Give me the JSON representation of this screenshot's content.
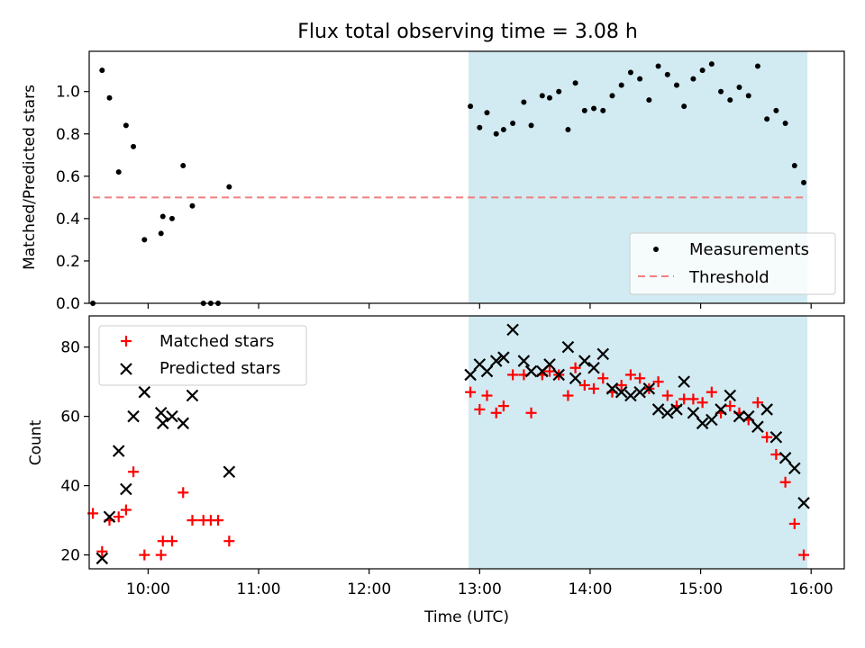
{
  "figure": {
    "title": "Flux total observing time = 3.08 h"
  },
  "colors": {
    "highlight_band": "#add8e6",
    "threshold_line": "#f08080",
    "measurement_dots": "#000000",
    "matched_marker": "#ff0000",
    "predicted_marker": "#000000"
  },
  "chart_data": [
    {
      "type": "scatter",
      "ylabel": "Matched/Predicted stars",
      "xlabel": "",
      "xlim": [
        "09:28",
        "16:18"
      ],
      "ylim": [
        0,
        1.19
      ],
      "yticks": [
        0.0,
        0.2,
        0.4,
        0.6,
        0.8,
        1.0
      ],
      "ytick_labels": [
        "0.0",
        "0.2",
        "0.4",
        "0.6",
        "0.8",
        "1.0"
      ],
      "highlight_span": [
        "12:54",
        "15:58"
      ],
      "grid": false,
      "legend_position": "lower-right",
      "legend": [
        {
          "label": "Measurements",
          "marker": "dot"
        },
        {
          "label": "Threshold",
          "marker": "dashed-line"
        }
      ],
      "threshold": {
        "name": "Threshold",
        "value": 0.5,
        "x_range": [
          "09:30",
          "15:58"
        ]
      },
      "series": [
        {
          "name": "Measurements",
          "points": [
            [
              "09:30",
              0.0
            ],
            [
              "09:35",
              1.1
            ],
            [
              "09:39",
              0.97
            ],
            [
              "09:44",
              0.62
            ],
            [
              "09:48",
              0.84
            ],
            [
              "09:52",
              0.74
            ],
            [
              "09:58",
              0.3
            ],
            [
              "10:07",
              0.33
            ],
            [
              "10:08",
              0.41
            ],
            [
              "10:13",
              0.4
            ],
            [
              "10:19",
              0.65
            ],
            [
              "10:24",
              0.46
            ],
            [
              "10:30",
              0.0
            ],
            [
              "10:34",
              0.0
            ],
            [
              "10:38",
              0.0
            ],
            [
              "10:44",
              0.55
            ],
            [
              "12:55",
              0.93
            ],
            [
              "13:00",
              0.83
            ],
            [
              "13:04",
              0.9
            ],
            [
              "13:09",
              0.8
            ],
            [
              "13:13",
              0.82
            ],
            [
              "13:18",
              0.85
            ],
            [
              "13:24",
              0.95
            ],
            [
              "13:28",
              0.84
            ],
            [
              "13:34",
              0.98
            ],
            [
              "13:38",
              0.97
            ],
            [
              "13:43",
              1.0
            ],
            [
              "13:48",
              0.82
            ],
            [
              "13:52",
              1.04
            ],
            [
              "13:57",
              0.91
            ],
            [
              "14:02",
              0.92
            ],
            [
              "14:07",
              0.91
            ],
            [
              "14:12",
              0.98
            ],
            [
              "14:17",
              1.03
            ],
            [
              "14:22",
              1.09
            ],
            [
              "14:27",
              1.06
            ],
            [
              "14:32",
              0.96
            ],
            [
              "14:37",
              1.12
            ],
            [
              "14:42",
              1.08
            ],
            [
              "14:47",
              1.03
            ],
            [
              "14:51",
              0.93
            ],
            [
              "14:56",
              1.06
            ],
            [
              "15:01",
              1.1
            ],
            [
              "15:06",
              1.13
            ],
            [
              "15:11",
              1.0
            ],
            [
              "15:16",
              0.96
            ],
            [
              "15:21",
              1.02
            ],
            [
              "15:26",
              0.98
            ],
            [
              "15:31",
              1.12
            ],
            [
              "15:36",
              0.87
            ],
            [
              "15:41",
              0.91
            ],
            [
              "15:46",
              0.85
            ],
            [
              "15:51",
              0.65
            ],
            [
              "15:56",
              0.57
            ]
          ]
        }
      ]
    },
    {
      "type": "scatter",
      "ylabel": "Count",
      "xlabel": "Time (UTC)",
      "xlim": [
        "09:28",
        "16:18"
      ],
      "ylim": [
        16,
        89
      ],
      "yticks": [
        20,
        40,
        60,
        80
      ],
      "ytick_labels": [
        "20",
        "40",
        "60",
        "80"
      ],
      "xticks": [
        "10:00",
        "11:00",
        "12:00",
        "13:00",
        "14:00",
        "15:00",
        "16:00"
      ],
      "xtick_labels": [
        "10:00",
        "11:00",
        "12:00",
        "13:00",
        "14:00",
        "15:00",
        "16:00"
      ],
      "highlight_span": [
        "12:54",
        "15:58"
      ],
      "grid": false,
      "legend_position": "upper-left",
      "legend": [
        {
          "label": "Matched stars",
          "marker": "plus"
        },
        {
          "label": "Predicted stars",
          "marker": "x"
        }
      ],
      "series": [
        {
          "name": "Matched stars",
          "points": [
            [
              "09:30",
              32
            ],
            [
              "09:35",
              21
            ],
            [
              "09:39",
              30
            ],
            [
              "09:44",
              31
            ],
            [
              "09:48",
              33
            ],
            [
              "09:52",
              44
            ],
            [
              "09:58",
              20
            ],
            [
              "10:07",
              20
            ],
            [
              "10:08",
              24
            ],
            [
              "10:13",
              24
            ],
            [
              "10:19",
              38
            ],
            [
              "10:24",
              30
            ],
            [
              "10:30",
              30
            ],
            [
              "10:34",
              30
            ],
            [
              "10:38",
              30
            ],
            [
              "10:44",
              24
            ],
            [
              "12:55",
              67
            ],
            [
              "13:00",
              62
            ],
            [
              "13:04",
              66
            ],
            [
              "13:09",
              61
            ],
            [
              "13:13",
              63
            ],
            [
              "13:18",
              72
            ],
            [
              "13:24",
              72
            ],
            [
              "13:28",
              61
            ],
            [
              "13:34",
              72
            ],
            [
              "13:38",
              73
            ],
            [
              "13:43",
              72
            ],
            [
              "13:48",
              66
            ],
            [
              "13:52",
              74
            ],
            [
              "13:57",
              69
            ],
            [
              "14:02",
              68
            ],
            [
              "14:07",
              71
            ],
            [
              "14:12",
              67
            ],
            [
              "14:17",
              69
            ],
            [
              "14:22",
              72
            ],
            [
              "14:27",
              71
            ],
            [
              "14:32",
              68
            ],
            [
              "14:37",
              70
            ],
            [
              "14:42",
              66
            ],
            [
              "14:47",
              63
            ],
            [
              "14:51",
              65
            ],
            [
              "14:56",
              65
            ],
            [
              "15:01",
              64
            ],
            [
              "15:06",
              67
            ],
            [
              "15:11",
              61
            ],
            [
              "15:16",
              63
            ],
            [
              "15:21",
              61
            ],
            [
              "15:26",
              59
            ],
            [
              "15:31",
              64
            ],
            [
              "15:36",
              54
            ],
            [
              "15:41",
              49
            ],
            [
              "15:46",
              41
            ],
            [
              "15:51",
              29
            ],
            [
              "15:56",
              20
            ]
          ]
        },
        {
          "name": "Predicted stars",
          "points": [
            [
              "09:35",
              19
            ],
            [
              "09:39",
              31
            ],
            [
              "09:44",
              50
            ],
            [
              "09:48",
              39
            ],
            [
              "09:52",
              60
            ],
            [
              "09:58",
              67
            ],
            [
              "10:07",
              61
            ],
            [
              "10:08",
              58
            ],
            [
              "10:13",
              60
            ],
            [
              "10:19",
              58
            ],
            [
              "10:24",
              66
            ],
            [
              "10:44",
              44
            ],
            [
              "12:55",
              72
            ],
            [
              "13:00",
              75
            ],
            [
              "13:04",
              73
            ],
            [
              "13:09",
              76
            ],
            [
              "13:13",
              77
            ],
            [
              "13:18",
              85
            ],
            [
              "13:24",
              76
            ],
            [
              "13:28",
              73
            ],
            [
              "13:34",
              73
            ],
            [
              "13:38",
              75
            ],
            [
              "13:43",
              72
            ],
            [
              "13:48",
              80
            ],
            [
              "13:52",
              71
            ],
            [
              "13:57",
              76
            ],
            [
              "14:02",
              74
            ],
            [
              "14:07",
              78
            ],
            [
              "14:12",
              68
            ],
            [
              "14:17",
              67
            ],
            [
              "14:22",
              66
            ],
            [
              "14:27",
              67
            ],
            [
              "14:32",
              68
            ],
            [
              "14:37",
              62
            ],
            [
              "14:42",
              61
            ],
            [
              "14:47",
              62
            ],
            [
              "14:51",
              70
            ],
            [
              "14:56",
              61
            ],
            [
              "15:01",
              58
            ],
            [
              "15:06",
              59
            ],
            [
              "15:11",
              62
            ],
            [
              "15:16",
              66
            ],
            [
              "15:21",
              60
            ],
            [
              "15:26",
              60
            ],
            [
              "15:31",
              57
            ],
            [
              "15:36",
              62
            ],
            [
              "15:41",
              54
            ],
            [
              "15:46",
              48
            ],
            [
              "15:51",
              45
            ],
            [
              "15:56",
              35
            ]
          ]
        }
      ]
    }
  ]
}
